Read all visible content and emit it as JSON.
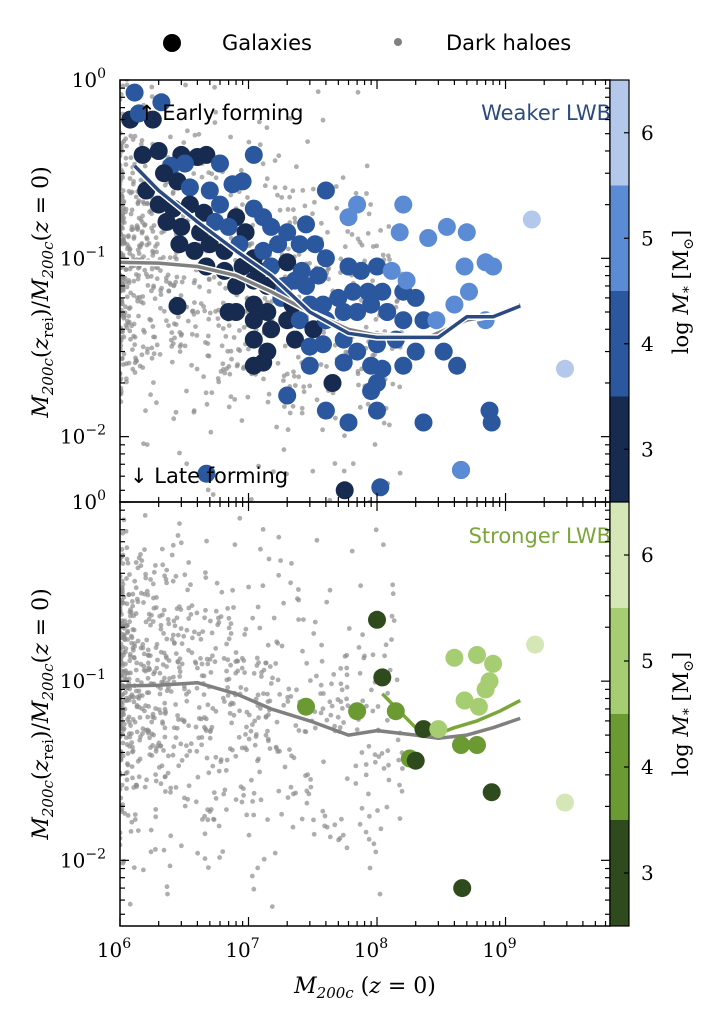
{
  "legend": {
    "galaxies_label": "Galaxies",
    "haloes_label": "Dark haloes"
  },
  "colors": {
    "halo_points": "#8c8c8c",
    "halo_median": "#808080",
    "weak_cbar": [
      "#172a4f",
      "#2b579e",
      "#5b8bd4",
      "#b3c8eb"
    ],
    "strong_cbar": [
      "#2f4a1c",
      "#6b9a33",
      "#a6cd72",
      "#d5e6b7"
    ],
    "weak_title": "#2b4a80",
    "strong_title": "#7aa63a"
  },
  "axes": {
    "xlabel": "M_200c (z = 0)",
    "ylabel": "M_200c(z_rei) / M_200c(z = 0)",
    "cbar_label": "log M_* [M_⊙]",
    "x_ticks": [
      "10^6",
      "10^7",
      "10^8",
      "10^9"
    ],
    "y_ticks": [
      "10^-2",
      "10^-1",
      "10^0"
    ],
    "cbar_ticks": [
      "3",
      "4",
      "5",
      "6"
    ]
  },
  "chart_data": [
    {
      "type": "scatter",
      "panel": "top",
      "title": "Weaker LWB",
      "annotations": [
        "↑ Early forming",
        "↓ Late forming"
      ],
      "xscale": "log",
      "yscale": "log",
      "xlim": [
        1000000,
        6500000000
      ],
      "ylim": [
        0.0043,
        1.0
      ],
      "clim": [
        2.5,
        6.5
      ],
      "halo_median": {
        "x": [
          1000000,
          2000000,
          4000000,
          8000000,
          15000000,
          30000000,
          60000000,
          100000000,
          250000000,
          500000000,
          800000000,
          1300000000
        ],
        "y": [
          0.095,
          0.094,
          0.09,
          0.08,
          0.065,
          0.05,
          0.04,
          0.037,
          0.036,
          0.045,
          0.048,
          0.055
        ]
      },
      "galaxy_median": {
        "x": [
          1300000,
          2000000,
          4000000,
          8000000,
          15000000,
          30000000,
          60000000,
          100000000,
          250000000,
          300000000,
          500000000,
          800000000,
          1300000000
        ],
        "y": [
          0.33,
          0.24,
          0.16,
          0.11,
          0.08,
          0.05,
          0.038,
          0.036,
          0.036,
          0.036,
          0.047,
          0.047,
          0.054
        ]
      },
      "galaxies": [
        {
          "x": 1300000,
          "y": 0.85,
          "c": 3.8
        },
        {
          "x": 1200000,
          "y": 0.6,
          "c": 3.0
        },
        {
          "x": 1800000,
          "y": 0.6,
          "c": 3.0
        },
        {
          "x": 2100000,
          "y": 0.75,
          "c": 3.8
        },
        {
          "x": 1400000,
          "y": 0.65,
          "c": 4.2
        },
        {
          "x": 1500000,
          "y": 0.38,
          "c": 3.0
        },
        {
          "x": 2000000,
          "y": 0.4,
          "c": 3.2
        },
        {
          "x": 3000000,
          "y": 0.38,
          "c": 3.0
        },
        {
          "x": 4000000,
          "y": 0.37,
          "c": 3.0
        },
        {
          "x": 4700000,
          "y": 0.38,
          "c": 3.0
        },
        {
          "x": 2500000,
          "y": 0.33,
          "c": 4.2
        },
        {
          "x": 3200000,
          "y": 0.34,
          "c": 3.8
        },
        {
          "x": 6000000,
          "y": 0.34,
          "c": 3.8
        },
        {
          "x": 11000000,
          "y": 0.38,
          "c": 4.2
        },
        {
          "x": 2200000,
          "y": 0.3,
          "c": 3.0
        },
        {
          "x": 2800000,
          "y": 0.27,
          "c": 3.0
        },
        {
          "x": 3500000,
          "y": 0.25,
          "c": 3.8
        },
        {
          "x": 1600000,
          "y": 0.24,
          "c": 3.2
        },
        {
          "x": 5000000,
          "y": 0.24,
          "c": 4.2
        },
        {
          "x": 7500000,
          "y": 0.26,
          "c": 4.2
        },
        {
          "x": 9000000,
          "y": 0.27,
          "c": 3.8
        },
        {
          "x": 2000000,
          "y": 0.2,
          "c": 3.0
        },
        {
          "x": 2600000,
          "y": 0.19,
          "c": 3.0
        },
        {
          "x": 3500000,
          "y": 0.2,
          "c": 3.2
        },
        {
          "x": 4500000,
          "y": 0.18,
          "c": 3.0
        },
        {
          "x": 6000000,
          "y": 0.2,
          "c": 3.8
        },
        {
          "x": 8000000,
          "y": 0.17,
          "c": 3.0
        },
        {
          "x": 11000000,
          "y": 0.19,
          "c": 4.2
        },
        {
          "x": 13000000,
          "y": 0.17,
          "c": 3.8
        },
        {
          "x": 2300000,
          "y": 0.16,
          "c": 3.0
        },
        {
          "x": 3000000,
          "y": 0.15,
          "c": 3.2
        },
        {
          "x": 4200000,
          "y": 0.14,
          "c": 3.0
        },
        {
          "x": 5500000,
          "y": 0.16,
          "c": 3.8
        },
        {
          "x": 7000000,
          "y": 0.15,
          "c": 4.2
        },
        {
          "x": 9500000,
          "y": 0.14,
          "c": 3.0
        },
        {
          "x": 15000000,
          "y": 0.15,
          "c": 4.2
        },
        {
          "x": 20000000,
          "y": 0.14,
          "c": 4.2
        },
        {
          "x": 28000000,
          "y": 0.155,
          "c": 3.8
        },
        {
          "x": 2900000,
          "y": 0.12,
          "c": 3.0
        },
        {
          "x": 3800000,
          "y": 0.11,
          "c": 3.0
        },
        {
          "x": 5000000,
          "y": 0.12,
          "c": 3.2
        },
        {
          "x": 6500000,
          "y": 0.11,
          "c": 3.0
        },
        {
          "x": 8500000,
          "y": 0.12,
          "c": 3.8
        },
        {
          "x": 11000000,
          "y": 0.1,
          "c": 3.0
        },
        {
          "x": 13000000,
          "y": 0.11,
          "c": 4.2
        },
        {
          "x": 17000000,
          "y": 0.12,
          "c": 3.8
        },
        {
          "x": 25000000,
          "y": 0.12,
          "c": 4.2
        },
        {
          "x": 33000000,
          "y": 0.12,
          "c": 4.2
        },
        {
          "x": 4700000,
          "y": 0.09,
          "c": 3.0
        },
        {
          "x": 6500000,
          "y": 0.085,
          "c": 3.2
        },
        {
          "x": 9000000,
          "y": 0.09,
          "c": 3.0
        },
        {
          "x": 12000000,
          "y": 0.085,
          "c": 3.0
        },
        {
          "x": 15000000,
          "y": 0.09,
          "c": 3.8
        },
        {
          "x": 20000000,
          "y": 0.095,
          "c": 3.0
        },
        {
          "x": 26000000,
          "y": 0.085,
          "c": 4.2
        },
        {
          "x": 40000000,
          "y": 0.1,
          "c": 3.8
        },
        {
          "x": 8000000,
          "y": 0.07,
          "c": 3.0
        },
        {
          "x": 11000000,
          "y": 0.075,
          "c": 3.2
        },
        {
          "x": 14000000,
          "y": 0.07,
          "c": 3.0
        },
        {
          "x": 19000000,
          "y": 0.07,
          "c": 3.8
        },
        {
          "x": 23000000,
          "y": 0.075,
          "c": 3.8
        },
        {
          "x": 28000000,
          "y": 0.07,
          "c": 4.2
        },
        {
          "x": 35000000,
          "y": 0.08,
          "c": 3.8
        },
        {
          "x": 60000000,
          "y": 0.09,
          "c": 3.8
        },
        {
          "x": 75000000,
          "y": 0.085,
          "c": 4.2
        },
        {
          "x": 100000000,
          "y": 0.09,
          "c": 3.8
        },
        {
          "x": 2800000,
          "y": 0.054,
          "c": 3.0
        },
        {
          "x": 7000000,
          "y": 0.05,
          "c": 3.0
        },
        {
          "x": 11000000,
          "y": 0.055,
          "c": 3.0
        },
        {
          "x": 14000000,
          "y": 0.05,
          "c": 3.2
        },
        {
          "x": 18000000,
          "y": 0.06,
          "c": 3.8
        },
        {
          "x": 22000000,
          "y": 0.055,
          "c": 3.0
        },
        {
          "x": 30000000,
          "y": 0.055,
          "c": 3.8
        },
        {
          "x": 38000000,
          "y": 0.055,
          "c": 4.2
        },
        {
          "x": 50000000,
          "y": 0.06,
          "c": 3.8
        },
        {
          "x": 65000000,
          "y": 0.065,
          "c": 3.8
        },
        {
          "x": 85000000,
          "y": 0.065,
          "c": 3.8
        },
        {
          "x": 110000000,
          "y": 0.065,
          "c": 4.2
        },
        {
          "x": 160000000,
          "y": 0.065,
          "c": 4.2
        },
        {
          "x": 200000000,
          "y": 0.06,
          "c": 3.8
        },
        {
          "x": 11000000,
          "y": 0.045,
          "c": 3.0
        },
        {
          "x": 15000000,
          "y": 0.04,
          "c": 3.0
        },
        {
          "x": 20000000,
          "y": 0.045,
          "c": 3.0
        },
        {
          "x": 25000000,
          "y": 0.045,
          "c": 3.8
        },
        {
          "x": 32000000,
          "y": 0.04,
          "c": 3.0
        },
        {
          "x": 40000000,
          "y": 0.045,
          "c": 3.8
        },
        {
          "x": 55000000,
          "y": 0.05,
          "c": 3.8
        },
        {
          "x": 70000000,
          "y": 0.05,
          "c": 3.8
        },
        {
          "x": 90000000,
          "y": 0.055,
          "c": 3.8
        },
        {
          "x": 120000000,
          "y": 0.05,
          "c": 4.2
        },
        {
          "x": 160000000,
          "y": 0.045,
          "c": 4.2
        },
        {
          "x": 230000000,
          "y": 0.045,
          "c": 3.8
        },
        {
          "x": 11000000,
          "y": 0.035,
          "c": 3.0
        },
        {
          "x": 14000000,
          "y": 0.03,
          "c": 3.0
        },
        {
          "x": 23000000,
          "y": 0.035,
          "c": 3.0
        },
        {
          "x": 30000000,
          "y": 0.032,
          "c": 3.8
        },
        {
          "x": 38000000,
          "y": 0.033,
          "c": 3.8
        },
        {
          "x": 55000000,
          "y": 0.035,
          "c": 3.8
        },
        {
          "x": 70000000,
          "y": 0.03,
          "c": 4.2
        },
        {
          "x": 100000000,
          "y": 0.033,
          "c": 3.8
        },
        {
          "x": 140000000,
          "y": 0.035,
          "c": 4.2
        },
        {
          "x": 200000000,
          "y": 0.03,
          "c": 3.8
        },
        {
          "x": 330000000,
          "y": 0.03,
          "c": 4.2
        },
        {
          "x": 11000000,
          "y": 0.025,
          "c": 3.0
        },
        {
          "x": 13000000,
          "y": 0.026,
          "c": 3.0
        },
        {
          "x": 30000000,
          "y": 0.025,
          "c": 3.8
        },
        {
          "x": 55000000,
          "y": 0.026,
          "c": 3.8
        },
        {
          "x": 90000000,
          "y": 0.025,
          "c": 4.2
        },
        {
          "x": 110000000,
          "y": 0.024,
          "c": 3.8
        },
        {
          "x": 160000000,
          "y": 0.025,
          "c": 4.2
        },
        {
          "x": 420000000,
          "y": 0.025,
          "c": 4.2
        },
        {
          "x": 100000000,
          "y": 0.02,
          "c": 3.8
        },
        {
          "x": 45000000,
          "y": 0.02,
          "c": 3.0
        },
        {
          "x": 20000000,
          "y": 0.017,
          "c": 3.8
        },
        {
          "x": 90000000,
          "y": 0.018,
          "c": 3.8
        },
        {
          "x": 40000000,
          "y": 0.014,
          "c": 3.8
        },
        {
          "x": 100000000,
          "y": 0.014,
          "c": 3.8
        },
        {
          "x": 60000000,
          "y": 0.012,
          "c": 3.8
        },
        {
          "x": 230000000,
          "y": 0.012,
          "c": 3.8
        },
        {
          "x": 8000000,
          "y": 0.05,
          "c": 3.0
        },
        {
          "x": 4700000,
          "y": 0.0062,
          "c": 4.2
        },
        {
          "x": 56000000,
          "y": 0.005,
          "c": 3.0
        },
        {
          "x": 106000000,
          "y": 0.0052,
          "c": 3.8
        },
        {
          "x": 450000000,
          "y": 0.0065,
          "c": 4.2
        },
        {
          "x": 40000000,
          "y": 0.24,
          "c": 3.8
        },
        {
          "x": 70000000,
          "y": 0.2,
          "c": 4.5
        },
        {
          "x": 160000000,
          "y": 0.2,
          "c": 4.5
        },
        {
          "x": 60000000,
          "y": 0.17,
          "c": 4.5
        },
        {
          "x": 350000000,
          "y": 0.15,
          "c": 4.5
        },
        {
          "x": 500000000,
          "y": 0.14,
          "c": 4.5
        },
        {
          "x": 250000000,
          "y": 0.13,
          "c": 4.5
        },
        {
          "x": 130000000,
          "y": 0.085,
          "c": 4.5
        },
        {
          "x": 400000000,
          "y": 0.055,
          "c": 4.5
        },
        {
          "x": 480000000,
          "y": 0.09,
          "c": 4.5
        },
        {
          "x": 520000000,
          "y": 0.065,
          "c": 4.5
        },
        {
          "x": 800000000,
          "y": 0.09,
          "c": 4.5
        },
        {
          "x": 700000000,
          "y": 0.095,
          "c": 4.5
        },
        {
          "x": 700000000,
          "y": 0.045,
          "c": 4.5
        },
        {
          "x": 170000000,
          "y": 0.075,
          "c": 4.5
        },
        {
          "x": 150000000,
          "y": 0.14,
          "c": 4.5
        },
        {
          "x": 290000000,
          "y": 0.045,
          "c": 4.5
        },
        {
          "x": 750000000,
          "y": 0.014,
          "c": 3.8
        },
        {
          "x": 450000000,
          "y": 0.0065,
          "c": 4.5
        },
        {
          "x": 1600000000,
          "y": 0.165,
          "c": 6.0
        },
        {
          "x": 2900000000,
          "y": 0.024,
          "c": 6.0
        },
        {
          "x": 780000000,
          "y": 0.012,
          "c": 3.8
        }
      ]
    },
    {
      "type": "scatter",
      "panel": "bottom",
      "title": "Stronger LWB",
      "xscale": "log",
      "yscale": "log",
      "xlim": [
        1000000,
        6500000000
      ],
      "ylim": [
        0.0043,
        1.0
      ],
      "clim": [
        2.5,
        6.5
      ],
      "halo_median": {
        "x": [
          1000000,
          2000000,
          4000000,
          8000000,
          15000000,
          30000000,
          60000000,
          100000000,
          200000000,
          300000000,
          500000000,
          800000000,
          1300000000
        ],
        "y": [
          0.094,
          0.095,
          0.098,
          0.085,
          0.07,
          0.06,
          0.05,
          0.053,
          0.05,
          0.048,
          0.05,
          0.055,
          0.062
        ]
      },
      "galaxy_median": {
        "x": [
          110000000,
          200000000,
          280000000,
          400000000,
          600000000,
          900000000,
          1300000000
        ],
        "y": [
          0.085,
          0.055,
          0.05,
          0.055,
          0.06,
          0.068,
          0.078
        ]
      },
      "galaxies": [
        {
          "x": 100000000,
          "y": 0.22,
          "c": 3.0
        },
        {
          "x": 110000000,
          "y": 0.105,
          "c": 3.0
        },
        {
          "x": 28000000,
          "y": 0.072,
          "c": 3.8
        },
        {
          "x": 70000000,
          "y": 0.068,
          "c": 3.8
        },
        {
          "x": 140000000,
          "y": 0.068,
          "c": 3.8
        },
        {
          "x": 230000000,
          "y": 0.054,
          "c": 3.0
        },
        {
          "x": 180000000,
          "y": 0.037,
          "c": 3.8
        },
        {
          "x": 200000000,
          "y": 0.036,
          "c": 3.0
        },
        {
          "x": 450000000,
          "y": 0.044,
          "c": 4.2
        },
        {
          "x": 600000000,
          "y": 0.044,
          "c": 4.2
        },
        {
          "x": 400000000,
          "y": 0.135,
          "c": 4.8
        },
        {
          "x": 600000000,
          "y": 0.14,
          "c": 4.8
        },
        {
          "x": 800000000,
          "y": 0.125,
          "c": 5.2
        },
        {
          "x": 750000000,
          "y": 0.1,
          "c": 5.2
        },
        {
          "x": 700000000,
          "y": 0.09,
          "c": 5.2
        },
        {
          "x": 480000000,
          "y": 0.078,
          "c": 4.8
        },
        {
          "x": 620000000,
          "y": 0.072,
          "c": 4.8
        },
        {
          "x": 300000000,
          "y": 0.054,
          "c": 4.8
        },
        {
          "x": 780000000,
          "y": 0.024,
          "c": 3.0
        },
        {
          "x": 460000000,
          "y": 0.007,
          "c": 3.0
        },
        {
          "x": 1700000000,
          "y": 0.16,
          "c": 6.0
        },
        {
          "x": 2900000000,
          "y": 0.021,
          "c": 6.0
        }
      ]
    }
  ]
}
